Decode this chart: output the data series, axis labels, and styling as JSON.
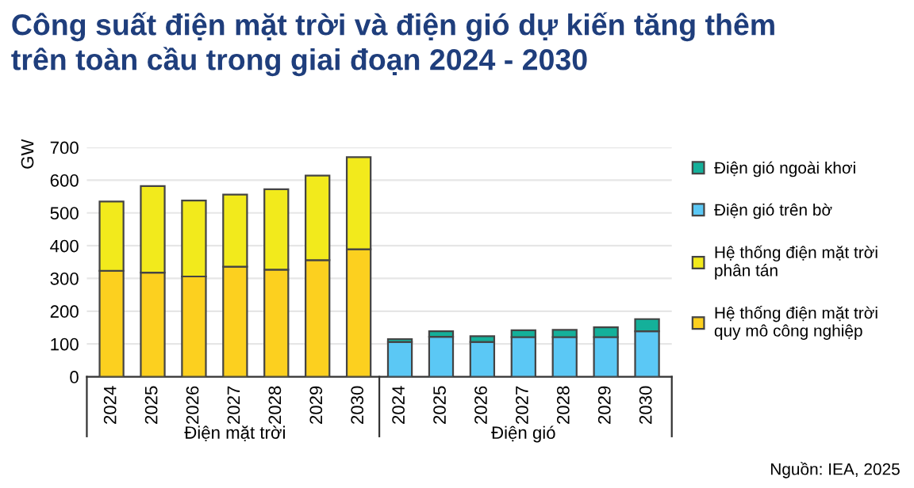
{
  "chart_data": {
    "type": "bar",
    "title": "Công suất điện mặt trời và điện gió dự kiến tăng thêm\ntrên toàn cầu trong giai đoạn 2024 - 2030",
    "ylabel": "GW",
    "stacked": true,
    "grid": "y",
    "legend": "right",
    "categories": [
      "2024",
      "2025",
      "2026",
      "2027",
      "2028",
      "2029",
      "2030",
      "2024",
      "2025",
      "2026",
      "2027",
      "2028",
      "2029",
      "2030"
    ],
    "ylim": [
      0,
      700
    ],
    "yticks": [
      0,
      100,
      200,
      300,
      400,
      500,
      600,
      700
    ],
    "series": [
      {
        "name": "Hệ thống điện mặt trời\nquy mô công nghiệp",
        "color": "#fcd01f",
        "values": [
          323,
          318,
          306,
          336,
          327,
          356,
          389,
          null,
          null,
          null,
          null,
          null,
          null,
          null
        ]
      },
      {
        "name": "Hệ thống điện mặt trời\nphân tán",
        "color": "#f2ea1c",
        "values": [
          212,
          264,
          232,
          220,
          245,
          258,
          281,
          null,
          null,
          null,
          null,
          null,
          null,
          null
        ]
      },
      {
        "name": "Điện gió trên bờ",
        "color": "#5bc8f5",
        "values": [
          null,
          null,
          null,
          null,
          null,
          null,
          null,
          106,
          122,
          106,
          121,
          121,
          121,
          139
        ]
      },
      {
        "name": "Điện gió ngoài khơi",
        "color": "#14b09a",
        "values": [
          null,
          null,
          null,
          null,
          null,
          null,
          null,
          9,
          17,
          18,
          21,
          22,
          30,
          37
        ]
      }
    ],
    "annotations": [
      "Điện mặt trời",
      "Điện gió",
      "Nguồn: IEA, 2025"
    ]
  }
}
